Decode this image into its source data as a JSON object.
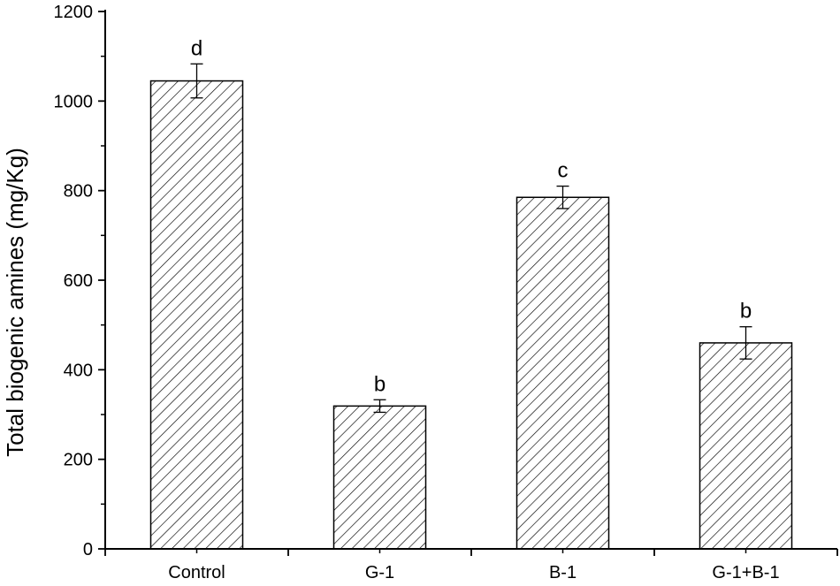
{
  "chart_data": {
    "type": "bar",
    "categories": [
      "Control",
      "G-1",
      "B-1",
      "G-1+B-1"
    ],
    "values": [
      1045,
      319,
      785,
      460
    ],
    "error": [
      38,
      14,
      25,
      36
    ],
    "significance_labels": [
      "d",
      "b",
      "c",
      "b"
    ],
    "title": "",
    "xlabel": "",
    "ylabel": "Total biogenic amines (mg/Kg)",
    "ylim": [
      0,
      1200
    ],
    "yticks": [
      0,
      200,
      400,
      600,
      800,
      1000,
      1200
    ],
    "grid": false,
    "legend": "none",
    "bar_fill": "diagonal-hatch",
    "colors": {
      "bar_stroke": "#000000",
      "hatch": "#000000",
      "background": "#ffffff"
    }
  }
}
